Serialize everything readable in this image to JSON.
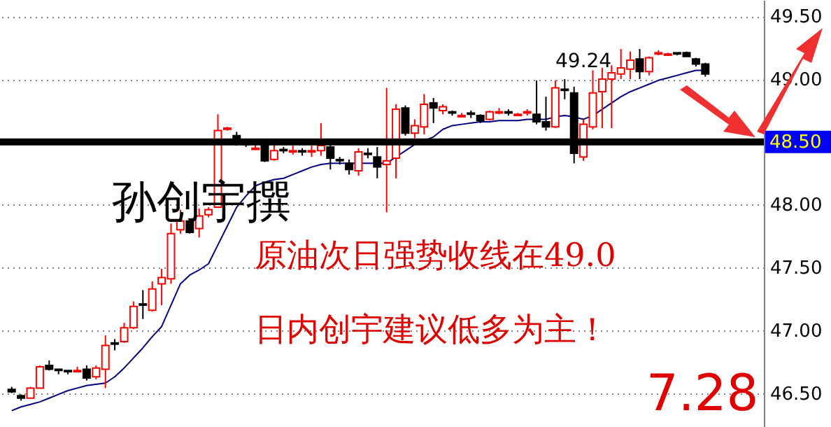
{
  "chart_data": {
    "type": "candlestick",
    "categories": [
      null,
      null,
      null,
      null,
      null,
      null,
      null,
      null,
      null,
      null,
      null,
      null,
      null,
      null,
      null,
      null,
      null,
      null,
      null,
      null,
      null,
      null,
      null,
      null,
      null,
      null,
      null,
      null,
      null,
      null,
      null,
      null,
      null,
      null,
      null,
      null,
      null,
      null,
      null,
      null,
      null,
      null,
      null,
      null,
      null,
      null,
      null,
      null,
      null,
      null,
      null,
      null,
      null,
      null,
      null,
      null,
      null,
      null,
      null,
      null,
      null,
      null,
      null,
      null,
      null,
      null,
      null,
      null,
      null,
      null,
      null,
      null,
      null,
      null,
      null
    ],
    "ohlc": [
      [
        46.53,
        46.55,
        46.5,
        46.51
      ],
      [
        46.48,
        46.49,
        46.44,
        46.46
      ],
      [
        46.46,
        46.55,
        46.46,
        46.54
      ],
      [
        46.54,
        46.72,
        46.54,
        46.71
      ],
      [
        46.72,
        46.76,
        46.68,
        46.69
      ],
      [
        46.69,
        46.69,
        46.65,
        46.68
      ],
      [
        46.68,
        46.68,
        46.65,
        46.67
      ],
      [
        46.67,
        46.71,
        46.67,
        46.68
      ],
      [
        46.69,
        46.72,
        46.6,
        46.62
      ],
      [
        46.63,
        46.72,
        46.61,
        46.7
      ],
      [
        46.69,
        46.96,
        46.54,
        46.88
      ],
      [
        46.9,
        46.93,
        46.84,
        46.89
      ],
      [
        46.91,
        47.06,
        46.9,
        47.02
      ],
      [
        47.02,
        47.23,
        47.01,
        47.19
      ],
      [
        47.21,
        47.32,
        47.09,
        47.2
      ],
      [
        47.16,
        47.39,
        47.15,
        47.33
      ],
      [
        47.37,
        47.49,
        47.2,
        47.42
      ],
      [
        47.41,
        47.85,
        47.37,
        47.77
      ],
      [
        47.8,
        47.96,
        47.77,
        47.87
      ],
      [
        47.87,
        47.89,
        47.77,
        47.78
      ],
      [
        47.81,
        47.97,
        47.74,
        47.91
      ],
      [
        47.92,
        47.98,
        47.9,
        47.96
      ],
      [
        47.98,
        48.72,
        47.98,
        48.59
      ],
      [
        48.6,
        48.62,
        48.59,
        48.61
      ],
      [
        48.55,
        48.58,
        48.47,
        48.51
      ],
      [
        48.49,
        48.52,
        48.46,
        48.48
      ],
      [
        48.44,
        48.48,
        48.44,
        48.45
      ],
      [
        48.47,
        48.48,
        48.34,
        48.35
      ],
      [
        48.36,
        48.48,
        48.35,
        48.43
      ],
      [
        48.44,
        48.46,
        48.41,
        48.43
      ],
      [
        48.42,
        48.47,
        48.4,
        48.43
      ],
      [
        48.43,
        48.45,
        48.39,
        48.42
      ],
      [
        48.42,
        48.47,
        48.38,
        48.43
      ],
      [
        48.43,
        48.65,
        48.39,
        48.47
      ],
      [
        48.46,
        48.52,
        48.28,
        48.37
      ],
      [
        48.36,
        48.38,
        48.32,
        48.35
      ],
      [
        48.33,
        48.36,
        48.24,
        48.28
      ],
      [
        48.27,
        48.45,
        48.23,
        48.42
      ],
      [
        48.41,
        48.45,
        48.37,
        48.4
      ],
      [
        48.38,
        48.46,
        48.21,
        48.3
      ],
      [
        48.32,
        48.93,
        47.94,
        48.35
      ],
      [
        48.37,
        48.8,
        48.21,
        48.76
      ],
      [
        48.77,
        48.79,
        48.55,
        48.57
      ],
      [
        48.57,
        48.68,
        48.53,
        48.63
      ],
      [
        48.62,
        48.88,
        48.56,
        48.8
      ],
      [
        48.81,
        48.85,
        48.65,
        48.77
      ],
      [
        48.75,
        48.8,
        48.72,
        48.78
      ],
      [
        48.74,
        48.75,
        48.71,
        48.73
      ],
      [
        48.7,
        48.73,
        48.7,
        48.71
      ],
      [
        48.73,
        48.75,
        48.69,
        48.72
      ],
      [
        48.71,
        48.72,
        48.65,
        48.67
      ],
      [
        48.68,
        48.75,
        48.67,
        48.74
      ],
      [
        48.73,
        48.77,
        48.72,
        48.74
      ],
      [
        48.74,
        48.76,
        48.71,
        48.73
      ],
      [
        48.71,
        48.73,
        48.71,
        48.72
      ],
      [
        48.73,
        48.76,
        48.71,
        48.74
      ],
      [
        48.72,
        48.99,
        48.64,
        48.66
      ],
      [
        48.66,
        48.86,
        48.59,
        48.62
      ],
      [
        48.62,
        48.99,
        48.61,
        48.93
      ],
      [
        48.92,
        49.0,
        48.84,
        48.91
      ],
      [
        48.89,
        48.94,
        48.33,
        48.41
      ],
      [
        48.38,
        48.68,
        48.35,
        48.64
      ],
      [
        48.62,
        49.07,
        48.6,
        48.89
      ],
      [
        48.9,
        49.09,
        48.61,
        49.0
      ],
      [
        49.0,
        49.11,
        48.61,
        49.05
      ],
      [
        49.04,
        49.24,
        49.0,
        49.09
      ],
      [
        49.08,
        49.22,
        49.0,
        49.15
      ],
      [
        49.16,
        49.24,
        49.0,
        49.06
      ],
      [
        49.06,
        49.18,
        49.03,
        49.17
      ],
      [
        49.2,
        49.23,
        49.19,
        49.21
      ],
      [
        49.19,
        49.21,
        49.19,
        49.2
      ],
      [
        49.21,
        49.21,
        49.19,
        49.2
      ],
      [
        49.21,
        49.22,
        49.18,
        49.18
      ],
      [
        49.16,
        49.17,
        49.1,
        49.12
      ],
      [
        49.12,
        49.13,
        49.02,
        49.04
      ]
    ],
    "colors": [
      "#000000",
      "#000000",
      "#ff0000",
      "#ff0000",
      "#000000",
      "#000000",
      "#000000",
      "#ff0000",
      "#000000",
      "#ff0000",
      "#ff0000",
      "#000000",
      "#ff0000",
      "#ff0000",
      "#000000",
      "#ff0000",
      "#ff0000",
      "#ff0000",
      "#ff0000",
      "#000000",
      "#ff0000",
      "#ff0000",
      "#ff0000",
      "#ff0000",
      "#000000",
      "#000000",
      "#ff0000",
      "#000000",
      "#ff0000",
      "#000000",
      "#ff0000",
      "#000000",
      "#ff0000",
      "#ff0000",
      "#000000",
      "#000000",
      "#000000",
      "#ff0000",
      "#000000",
      "#000000",
      "#ff0000",
      "#ff0000",
      "#000000",
      "#ff0000",
      "#ff0000",
      "#000000",
      "#ff0000",
      "#000000",
      "#ff0000",
      "#000000",
      "#000000",
      "#ff0000",
      "#ff0000",
      "#000000",
      "#ff0000",
      "#ff0000",
      "#000000",
      "#000000",
      "#ff0000",
      "#000000",
      "#000000",
      "#ff0000",
      "#ff0000",
      "#ff0000",
      "#ff0000",
      "#ff0000",
      "#ff0000",
      "#000000",
      "#ff0000",
      "#ff0000",
      "#ff0000",
      "#000000",
      "#000000",
      "#000000",
      "#000000"
    ],
    "series": [
      {
        "type": "line",
        "color": "#000080",
        "values": [
          46.36,
          46.39,
          46.41,
          46.43,
          46.46,
          46.49,
          46.52,
          46.54,
          46.56,
          46.57,
          46.58,
          46.63,
          46.7,
          46.78,
          46.86,
          46.95,
          47.03,
          47.2,
          47.37,
          47.44,
          47.48,
          47.53,
          47.68,
          47.83,
          47.98,
          48.07,
          48.15,
          48.18,
          48.2,
          48.21,
          48.24,
          48.27,
          48.3,
          48.32,
          48.33,
          48.33,
          48.33,
          48.33,
          48.33,
          48.33,
          48.33,
          48.38,
          48.43,
          48.48,
          48.51,
          48.54,
          48.6,
          48.63,
          48.64,
          48.65,
          48.66,
          48.66,
          48.67,
          48.67,
          48.67,
          48.68,
          48.68,
          48.68,
          48.7,
          48.71,
          48.7,
          48.68,
          48.71,
          48.76,
          48.81,
          48.86,
          48.9,
          48.93,
          48.96,
          48.99,
          49.01,
          49.03,
          49.05,
          49.07,
          49.07
        ]
      }
    ],
    "ylim": [
      46.23,
      49.63
    ],
    "yticks": [
      {
        "value": 46.5,
        "label": "46.50"
      },
      {
        "value": 47,
        "label": "47.00"
      },
      {
        "value": 47.5,
        "label": "47.50"
      },
      {
        "value": 48,
        "label": "48.00"
      },
      {
        "value": 49,
        "label": "49.00"
      },
      {
        "value": 49.5,
        "label": "49.50"
      }
    ],
    "grid": "y",
    "ref_lines": [
      {
        "axis": "y",
        "value": 48.5,
        "label": "48.50",
        "color": "#000000"
      }
    ],
    "annotations": [
      "49.24",
      "孙创宇撰",
      "原油次日强势收线在49.0",
      "日内创宇建议低多为主！",
      "7.28"
    ]
  }
}
